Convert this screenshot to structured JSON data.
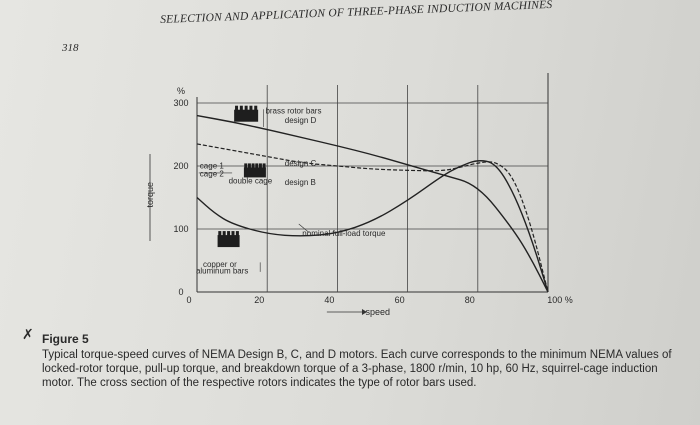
{
  "header": {
    "page_number": "318",
    "running_head": "SELECTION AND APPLICATION OF THREE-PHASE INDUCTION MACHINES"
  },
  "chart_data": {
    "type": "line",
    "xlabel": "speed",
    "ylabel": "torque",
    "y_unit": "%",
    "x_unit": "%",
    "xlim": [
      0,
      100
    ],
    "ylim": [
      0,
      300
    ],
    "x_ticks": [
      "0",
      "20",
      "40",
      "60",
      "80",
      "100 %"
    ],
    "y_ticks": [
      "0",
      "100",
      "200",
      "300"
    ],
    "series": [
      {
        "name": "design B",
        "points": [
          [
            0,
            150
          ],
          [
            5,
            125
          ],
          [
            10,
            108
          ],
          [
            20,
            92
          ],
          [
            30,
            88
          ],
          [
            40,
            93
          ],
          [
            50,
            112
          ],
          [
            60,
            145
          ],
          [
            70,
            185
          ],
          [
            75,
            200
          ],
          [
            80,
            210
          ],
          [
            85,
            205
          ],
          [
            90,
            160
          ],
          [
            95,
            90
          ],
          [
            100,
            0
          ]
        ]
      },
      {
        "name": "design C",
        "points": [
          [
            0,
            235
          ],
          [
            10,
            225
          ],
          [
            20,
            215
          ],
          [
            30,
            205
          ],
          [
            40,
            200
          ],
          [
            50,
            195
          ],
          [
            60,
            193
          ],
          [
            70,
            192
          ],
          [
            75,
            198
          ],
          [
            80,
            205
          ],
          [
            85,
            208
          ],
          [
            90,
            185
          ],
          [
            95,
            110
          ],
          [
            100,
            0
          ]
        ]
      },
      {
        "name": "design D",
        "points": [
          [
            0,
            280
          ],
          [
            10,
            270
          ],
          [
            20,
            258
          ],
          [
            30,
            245
          ],
          [
            40,
            232
          ],
          [
            50,
            218
          ],
          [
            60,
            202
          ],
          [
            70,
            186
          ],
          [
            80,
            170
          ],
          [
            90,
            100
          ],
          [
            95,
            55
          ],
          [
            100,
            0
          ]
        ]
      }
    ],
    "nominal_full_load_torque": 100,
    "annotations": [
      "brass rotor bars",
      "cage 1",
      "cage 2",
      "double cage",
      "copper or",
      "aluminum bars",
      "nominal full-load torque"
    ]
  },
  "figure": {
    "label": "Figure 5",
    "caption": "Typical torque-speed curves of NEMA Design B, C, and D motors. Each curve corresponds to the minimum NEMA values of locked-rotor torque, pull-up torque, and breakdown torque of a 3-phase, 1800 r/min, 10 hp, 60 Hz, squirrel-cage induction motor. The cross section of the respective rotors indicates the type of rotor bars used."
  },
  "icons": [
    "rotor-brass-bars-icon",
    "rotor-double-cage-icon",
    "rotor-copper-bars-icon",
    "arrow-right-icon",
    "hand-mark-icon"
  ]
}
